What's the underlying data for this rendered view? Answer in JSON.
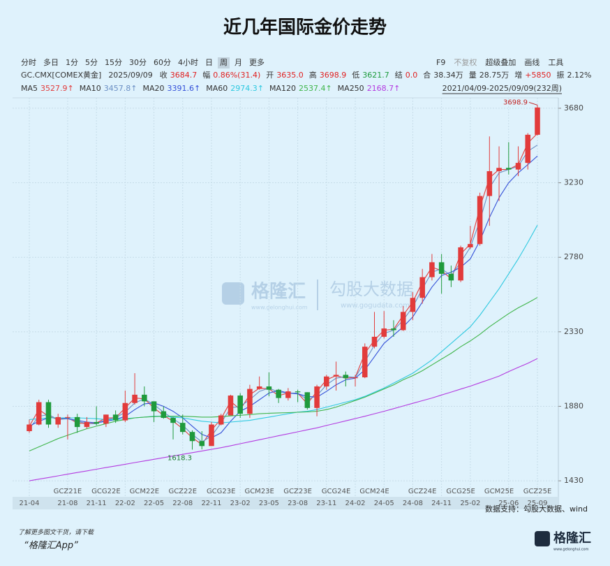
{
  "title": "近几年国际金价走势",
  "toolbar": {
    "left": [
      "分时",
      "多日",
      "1分",
      "5分",
      "15分",
      "30分",
      "60分",
      "4小时",
      "日",
      "周",
      "月",
      "更多"
    ],
    "selected_index": 9,
    "right": [
      "F9",
      "不复权",
      "超级叠加",
      "画线",
      "工具"
    ]
  },
  "info": {
    "symbol": "GC.CMX[COMEX黄金]",
    "date": "2025/09/09",
    "fields": [
      {
        "key": "收",
        "value": "3684.7",
        "color": "#e02020"
      },
      {
        "key": "幅",
        "value": "0.86%(31.4)",
        "color": "#e02020"
      },
      {
        "key": "开",
        "value": "3635.0",
        "color": "#e02020"
      },
      {
        "key": "高",
        "value": "3698.9",
        "color": "#e02020"
      },
      {
        "key": "低",
        "value": "3621.7",
        "color": "#1a9a3a"
      },
      {
        "key": "结",
        "value": "0.0",
        "color": "#e02020"
      },
      {
        "key": "合",
        "value": "38.34万",
        "color": "#333333"
      },
      {
        "key": "量",
        "value": "28.75万",
        "color": "#333333"
      },
      {
        "key": "增",
        "value": "+5850",
        "color": "#e02020"
      },
      {
        "key": "振",
        "value": "2.12%",
        "color": "#333333"
      }
    ]
  },
  "range_label": "2021/04/09-2025/09/09(232周)",
  "chart_data": {
    "type": "candlestick",
    "categories": [
      "21-04",
      null,
      null,
      null,
      "21-08",
      null,
      null,
      "21-11",
      null,
      null,
      "22-02",
      null,
      null,
      "22-05",
      null,
      null,
      "22-08",
      null,
      null,
      "22-11",
      null,
      null,
      "23-02",
      null,
      null,
      "23-05",
      null,
      null,
      "23-08",
      null,
      null,
      "23-11",
      null,
      null,
      "24-02",
      null,
      null,
      "24-05",
      null,
      null,
      "24-08",
      null,
      null,
      "24-11",
      null,
      null,
      "25-02",
      null,
      null,
      null,
      "25-06",
      null,
      null,
      "25-09"
    ],
    "contracts": [
      null,
      null,
      null,
      null,
      "GCZ21E",
      null,
      null,
      null,
      "GCG22E",
      null,
      null,
      null,
      "GCM22E",
      null,
      null,
      null,
      "GCZ22E",
      null,
      null,
      null,
      "GCG23E",
      null,
      null,
      null,
      "GCM23E",
      null,
      null,
      null,
      "GCZ23E",
      null,
      null,
      null,
      "GCG24E",
      null,
      null,
      null,
      "GCM24E",
      null,
      null,
      null,
      null,
      "GCZ24E",
      null,
      null,
      null,
      "GCG25E",
      null,
      null,
      null,
      "GCM25E",
      null,
      null,
      null,
      "GCZ25E"
    ],
    "open": [
      1730,
      1770,
      1905,
      1770,
      1815,
      1815,
      1755,
      1785,
      1775,
      1830,
      1795,
      1900,
      1950,
      1910,
      1850,
      1810,
      1780,
      1725,
      1670,
      1640,
      1770,
      1825,
      1945,
      1835,
      1985,
      2000,
      1980,
      1930,
      1970,
      1965,
      1870,
      2000,
      2060,
      2070,
      2050,
      2055,
      2240,
      2300,
      2350,
      2340,
      2450,
      2535,
      2660,
      2750,
      2680,
      2640,
      2840,
      2860,
      3150,
      3300,
      3320,
      3310,
      3350,
      3520
    ],
    "high": [
      1800,
      1920,
      1920,
      1835,
      1830,
      1835,
      1815,
      1880,
      1830,
      1855,
      1975,
      2080,
      2000,
      1910,
      1880,
      1815,
      1830,
      1735,
      1730,
      1785,
      1835,
      1950,
      1960,
      2010,
      2060,
      2085,
      1985,
      1990,
      1980,
      1965,
      2010,
      2070,
      2150,
      2090,
      2070,
      2260,
      2450,
      2455,
      2400,
      2485,
      2570,
      2710,
      2800,
      2800,
      2730,
      2850,
      2970,
      3170,
      3510,
      3450,
      3475,
      3450,
      3530,
      3698.9
    ],
    "low": [
      1720,
      1765,
      1750,
      1750,
      1680,
      1720,
      1745,
      1765,
      1755,
      1780,
      1785,
      1890,
      1880,
      1785,
      1805,
      1680,
      1710,
      1618.3,
      1620,
      1640,
      1765,
      1825,
      1810,
      1810,
      1980,
      1940,
      1900,
      1915,
      1905,
      1860,
      1820,
      1980,
      1975,
      2000,
      2000,
      2050,
      2230,
      2290,
      2300,
      2335,
      2400,
      2500,
      2640,
      2560,
      2600,
      2630,
      2830,
      2850,
      2970,
      3120,
      3280,
      3270,
      3310,
      3515
    ],
    "close": [
      1770,
      1905,
      1770,
      1815,
      1815,
      1755,
      1785,
      1775,
      1830,
      1795,
      1900,
      1950,
      1910,
      1850,
      1810,
      1780,
      1725,
      1670,
      1640,
      1770,
      1825,
      1945,
      1835,
      1985,
      2000,
      1980,
      1930,
      1970,
      1965,
      1870,
      2000,
      2060,
      2070,
      2050,
      2055,
      2240,
      2300,
      2350,
      2340,
      2450,
      2535,
      2660,
      2750,
      2680,
      2640,
      2840,
      2860,
      3150,
      3300,
      3320,
      3310,
      3350,
      3520,
      3684.7
    ],
    "up_color": "#e23b3b",
    "down_color": "#1f9a3c",
    "series": [
      {
        "name": "MA5",
        "color": "#e23b3b",
        "legend_value": "3527.9↑",
        "values": [
          1760,
          1860,
          1820,
          1800,
          1810,
          1780,
          1775,
          1780,
          1810,
          1810,
          1870,
          1930,
          1925,
          1870,
          1825,
          1790,
          1745,
          1690,
          1650,
          1735,
          1805,
          1910,
          1860,
          1950,
          1990,
          1985,
          1945,
          1960,
          1960,
          1895,
          1970,
          2040,
          2065,
          2050,
          2055,
          2200,
          2280,
          2340,
          2345,
          2430,
          2510,
          2630,
          2720,
          2700,
          2650,
          2800,
          2860,
          3080,
          3260,
          3310,
          3310,
          3340,
          3470,
          3527.9
        ]
      },
      {
        "name": "MA10",
        "color": "#6b8fc4",
        "legend_value": "3457.8↑",
        "values": [
          1745,
          1820,
          1830,
          1800,
          1805,
          1790,
          1775,
          1775,
          1800,
          1810,
          1845,
          1900,
          1925,
          1890,
          1845,
          1805,
          1765,
          1710,
          1665,
          1700,
          1780,
          1870,
          1880,
          1920,
          1970,
          1990,
          1965,
          1960,
          1960,
          1920,
          1945,
          2010,
          2050,
          2060,
          2055,
          2150,
          2250,
          2320,
          2340,
          2400,
          2480,
          2590,
          2690,
          2710,
          2670,
          2750,
          2840,
          3000,
          3200,
          3290,
          3310,
          3330,
          3420,
          3457.8
        ]
      },
      {
        "name": "MA20",
        "color": "#3450d8",
        "legend_value": "3391.6↑",
        "values": [
          1760,
          1790,
          1810,
          1810,
          1805,
          1795,
          1785,
          1780,
          1790,
          1800,
          1820,
          1860,
          1895,
          1900,
          1880,
          1850,
          1810,
          1760,
          1710,
          1690,
          1720,
          1790,
          1850,
          1880,
          1920,
          1960,
          1975,
          1960,
          1955,
          1940,
          1935,
          1970,
          2010,
          2040,
          2050,
          2100,
          2180,
          2260,
          2310,
          2360,
          2420,
          2510,
          2600,
          2670,
          2690,
          2720,
          2770,
          2880,
          3020,
          3140,
          3230,
          3290,
          3340,
          3391.6
        ]
      },
      {
        "name": "MA60",
        "color": "#2ec9e0",
        "legend_value": "2974.3↑",
        "values": [
          1800,
          1805,
          1810,
          1810,
          1810,
          1810,
          1808,
          1805,
          1800,
          1800,
          1805,
          1810,
          1815,
          1820,
          1820,
          1815,
          1810,
          1800,
          1790,
          1785,
          1780,
          1785,
          1790,
          1795,
          1805,
          1815,
          1825,
          1835,
          1845,
          1850,
          1860,
          1875,
          1890,
          1905,
          1920,
          1940,
          1965,
          1990,
          2020,
          2050,
          2080,
          2120,
          2160,
          2210,
          2260,
          2310,
          2360,
          2430,
          2510,
          2590,
          2680,
          2770,
          2870,
          2974.3
        ]
      },
      {
        "name": "MA120",
        "color": "#3fb54a",
        "legend_value": "2537.4↑",
        "values": [
          1610,
          1635,
          1660,
          1685,
          1705,
          1725,
          1745,
          1760,
          1775,
          1790,
          1800,
          1810,
          1815,
          1818,
          1820,
          1820,
          1820,
          1818,
          1815,
          1815,
          1818,
          1822,
          1826,
          1830,
          1835,
          1838,
          1840,
          1842,
          1844,
          1846,
          1850,
          1860,
          1875,
          1895,
          1915,
          1935,
          1960,
          1985,
          2010,
          2040,
          2065,
          2095,
          2130,
          2165,
          2200,
          2240,
          2275,
          2315,
          2360,
          2400,
          2440,
          2475,
          2505,
          2537.4
        ]
      },
      {
        "name": "MA250",
        "color": "#b43ae0",
        "legend_value": "2168.7↑",
        "values": [
          1430,
          1440,
          1450,
          1460,
          1470,
          1480,
          1490,
          1500,
          1510,
          1520,
          1530,
          1540,
          1550,
          1560,
          1570,
          1580,
          1590,
          1600,
          1610,
          1620,
          1630,
          1642,
          1654,
          1666,
          1678,
          1690,
          1702,
          1714,
          1726,
          1738,
          1750,
          1764,
          1778,
          1792,
          1806,
          1820,
          1835,
          1850,
          1866,
          1882,
          1898,
          1914,
          1930,
          1948,
          1966,
          1984,
          2002,
          2022,
          2042,
          2062,
          2090,
          2115,
          2140,
          2168.7
        ]
      }
    ],
    "ylim": [
      1346,
      3743
    ],
    "yticks": [
      1430,
      1880,
      2330,
      2780,
      3230,
      3680
    ],
    "grid": true
  },
  "watermark": {
    "brand": "格隆汇",
    "brand_url": "www.gelonghui.com",
    "partner": "勾股大数据",
    "partner_url": "www.gogudata.com"
  },
  "source": "数据支持：勾股大数据、wind",
  "footer": {
    "line1": "了解更多图文干货，请下载",
    "line2": "“格隆汇App”",
    "logo": "格隆汇",
    "logo_url": "www.gelonghui.com"
  }
}
